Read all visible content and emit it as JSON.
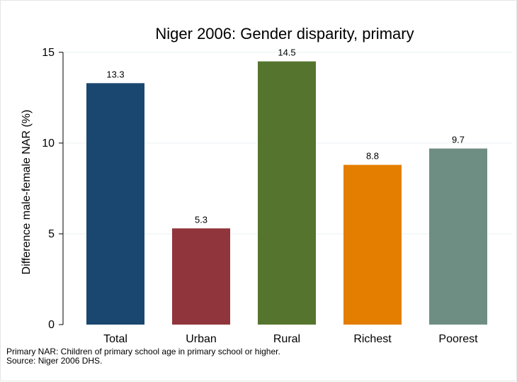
{
  "chart_data": {
    "type": "bar",
    "title": "Niger 2006: Gender disparity, primary",
    "xlabel": "",
    "ylabel": "Difference male-female NAR (%)",
    "ylim": [
      0,
      15.5
    ],
    "yticks": [
      0,
      5,
      10,
      15
    ],
    "grid": true,
    "legend": "none",
    "categories": [
      "Total",
      "Urban",
      "Rural",
      "Richest",
      "Poorest"
    ],
    "values": [
      13.3,
      5.3,
      14.5,
      8.8,
      9.7
    ],
    "value_labels": [
      "13.3",
      "5.3",
      "14.5",
      "8.8",
      "9.7"
    ],
    "colors": [
      "#1a476f",
      "#90353b",
      "#55752f",
      "#e37e00",
      "#6e8e84"
    ]
  },
  "notes": {
    "line1": "Primary NAR: Children of primary school age in primary school or higher.",
    "line2": "Source: Niger 2006 DHS."
  }
}
